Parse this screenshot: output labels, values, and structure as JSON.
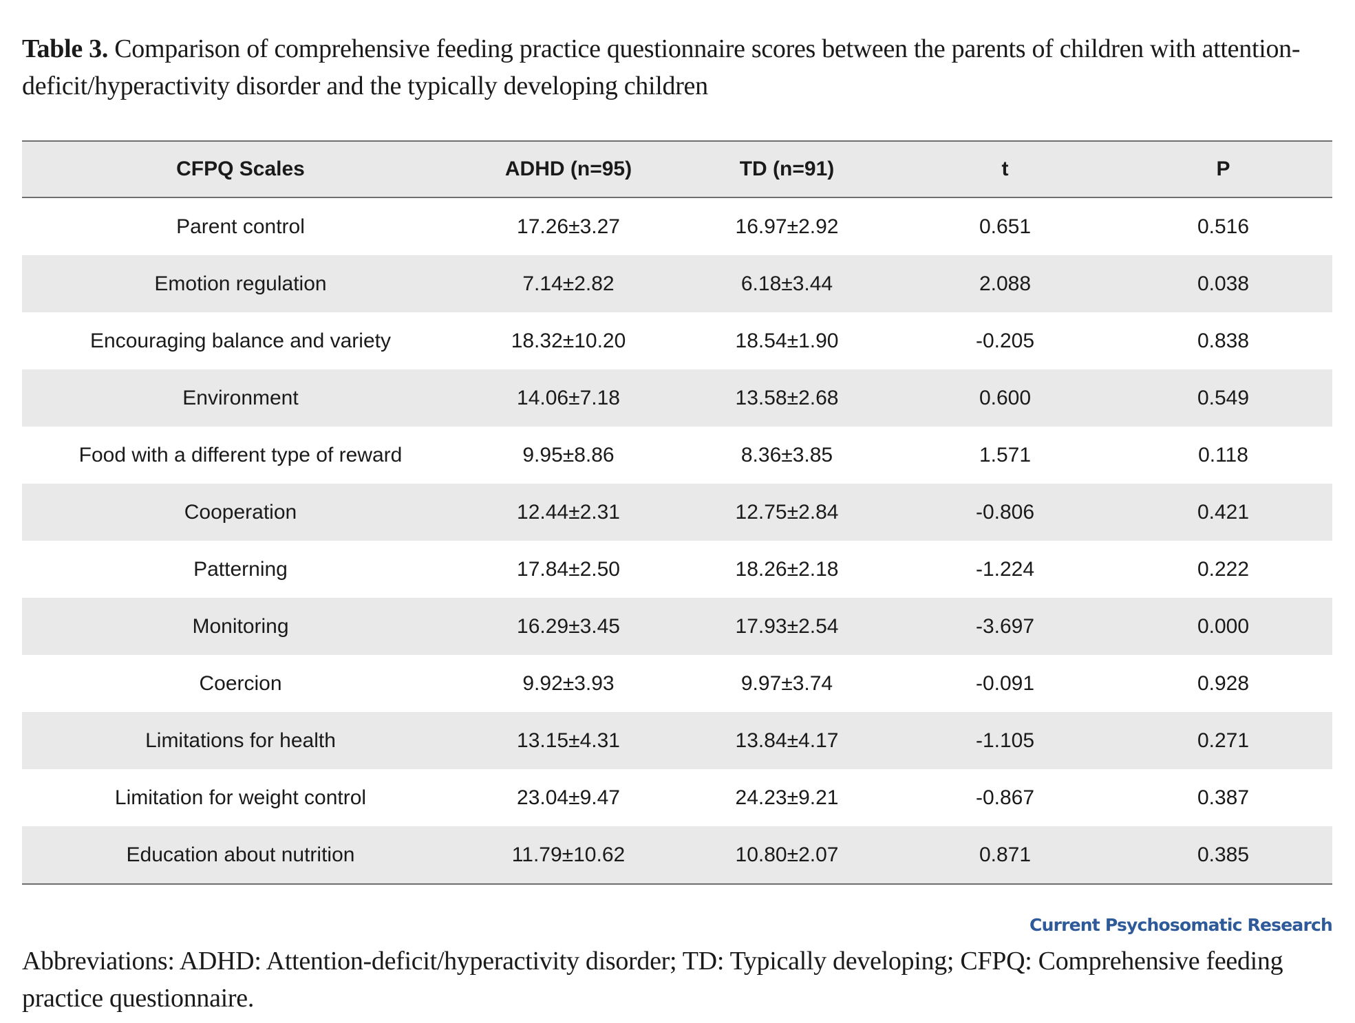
{
  "caption": {
    "label": "Table 3.",
    "text": "Comparison of comprehensive feeding practice questionnaire scores between the parents of children with attention-deficit/hyperactivity disorder and the typically developing children"
  },
  "table": {
    "headers": [
      "CFPQ Scales",
      "ADHD (n=95)",
      "TD (n=91)",
      "t",
      "P"
    ],
    "rows": [
      [
        "Parent control",
        "17.26±3.27",
        "16.97±2.92",
        "0.651",
        "0.516"
      ],
      [
        "Emotion regulation",
        "7.14±2.82",
        "6.18±3.44",
        "2.088",
        "0.038"
      ],
      [
        "Encouraging balance and variety",
        "18.32±10.20",
        "18.54±1.90",
        "-0.205",
        "0.838"
      ],
      [
        "Environment",
        "14.06±7.18",
        "13.58±2.68",
        "0.600",
        "0.549"
      ],
      [
        "Food with a different type of reward",
        "9.95±8.86",
        "8.36±3.85",
        "1.571",
        "0.118"
      ],
      [
        "Cooperation",
        "12.44±2.31",
        "12.75±2.84",
        "-0.806",
        "0.421"
      ],
      [
        "Patterning",
        "17.84±2.50",
        "18.26±2.18",
        "-1.224",
        "0.222"
      ],
      [
        "Monitoring",
        "16.29±3.45",
        "17.93±2.54",
        "-3.697",
        "0.000"
      ],
      [
        "Coercion",
        "9.92±3.93",
        "9.97±3.74",
        "-0.091",
        "0.928"
      ],
      [
        "Limitations for health",
        "13.15±4.31",
        "13.84±4.17",
        "-1.105",
        "0.271"
      ],
      [
        "Limitation for weight control",
        "23.04±9.47",
        "24.23±9.21",
        "-0.867",
        "0.387"
      ],
      [
        "Education about nutrition",
        "11.79±10.62",
        "10.80±2.07",
        "0.871",
        "0.385"
      ]
    ]
  },
  "brand": "Current Psychosomatic Research",
  "footnote": "Abbreviations: ADHD: Attention-deficit/hyperactivity disorder; TD: Typically developing; CFPQ: Comprehensive feeding practice questionnaire."
}
